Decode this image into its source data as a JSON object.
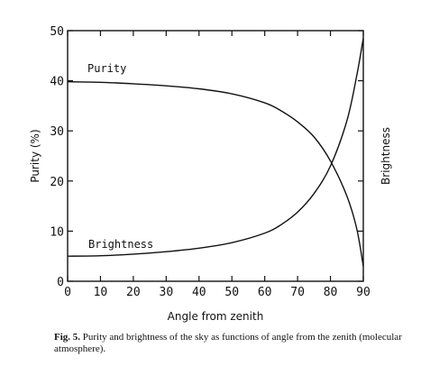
{
  "chart_data": {
    "type": "line",
    "xlabel": "Angle from zenith",
    "ylabel_left": "Purity (%)",
    "ylabel_right": "Brightness",
    "xlim": [
      0,
      90
    ],
    "ylim": [
      0,
      50
    ],
    "xticks": [
      0,
      10,
      20,
      30,
      40,
      50,
      60,
      70,
      80,
      90
    ],
    "yticks": [
      0,
      10,
      20,
      30,
      40,
      50
    ],
    "grid": false,
    "series": [
      {
        "name": "Purity",
        "x": [
          0,
          10,
          20,
          30,
          40,
          50,
          60,
          65,
          70,
          75,
          80,
          85,
          88,
          90
        ],
        "y": [
          39.8,
          39.7,
          39.4,
          39.0,
          38.4,
          37.4,
          35.6,
          34.0,
          31.8,
          28.8,
          24.0,
          17.0,
          10.5,
          3.0
        ]
      },
      {
        "name": "Brightness",
        "x": [
          0,
          10,
          20,
          30,
          40,
          50,
          60,
          65,
          70,
          75,
          80,
          85,
          88,
          90
        ],
        "y": [
          5.0,
          5.1,
          5.4,
          5.9,
          6.6,
          7.7,
          9.6,
          11.3,
          13.8,
          17.5,
          23.0,
          32.0,
          41.0,
          48.5
        ]
      }
    ],
    "annotations": [
      {
        "text": "Purity",
        "series": "Purity"
      },
      {
        "text": "Brightness",
        "series": "Brightness"
      }
    ]
  },
  "caption": {
    "label": "Fig. 5.",
    "text": "Purity and brightness of the sky as functions of angle from the zenith (molecular atmosphere)."
  }
}
